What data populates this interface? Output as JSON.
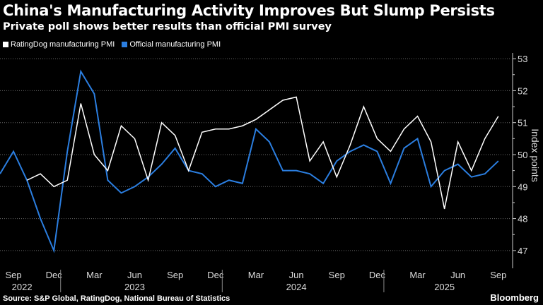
{
  "title": "China's Manufacturing Activity Improves But Slump Persists",
  "subtitle": "Private poll shows better results than official PMI survey",
  "source": "Source: S&P Global, RatingDog, National Bureau of Statistics",
  "logo": "Bloomberg",
  "chart_data": {
    "type": "line",
    "title": "China's Manufacturing Activity Improves But Slump Persists",
    "subtitle": "Private poll shows better results than official PMI survey",
    "ylabel": "Index points",
    "ylim": [
      46.5,
      53.1
    ],
    "yticks": [
      47,
      48,
      49,
      50,
      51,
      52,
      53
    ],
    "y_axis_side": "right",
    "grid": true,
    "legend": "top-left",
    "x_start": "2022-08",
    "x_end": "2025-09",
    "xticks": [
      {
        "month": "Sep",
        "date": "2022-09"
      },
      {
        "month": "Dec",
        "date": "2022-12"
      },
      {
        "month": "Mar",
        "date": "2023-03"
      },
      {
        "month": "Jun",
        "date": "2023-06"
      },
      {
        "month": "Sep",
        "date": "2023-09"
      },
      {
        "month": "Dec",
        "date": "2023-12"
      },
      {
        "month": "Mar",
        "date": "2024-03"
      },
      {
        "month": "Jun",
        "date": "2024-06"
      },
      {
        "month": "Sep",
        "date": "2024-09"
      },
      {
        "month": "Dec",
        "date": "2024-12"
      },
      {
        "month": "Mar",
        "date": "2025-03"
      },
      {
        "month": "Jun",
        "date": "2025-06"
      },
      {
        "month": "Sep",
        "date": "2025-09"
      }
    ],
    "years": [
      {
        "label": "2022",
        "center": "2022-10"
      },
      {
        "label": "2023",
        "center": "2023-06"
      },
      {
        "label": "2024",
        "center": "2024-06"
      },
      {
        "label": "2025",
        "center": "2025-05"
      }
    ],
    "series": [
      {
        "name": "RatingDog manufacturing PMI",
        "color": "#ffffff",
        "start": "2022-10",
        "values": [
          49.2,
          49.4,
          49.0,
          49.2,
          51.6,
          50.0,
          49.5,
          50.9,
          50.5,
          49.2,
          51.0,
          50.6,
          49.5,
          50.7,
          50.8,
          50.8,
          50.9,
          51.1,
          51.4,
          51.7,
          51.8,
          49.8,
          50.4,
          49.3,
          50.3,
          51.5,
          50.5,
          50.1,
          50.8,
          51.2,
          50.4,
          48.3,
          50.4,
          49.5,
          50.5,
          51.2
        ]
      },
      {
        "name": "Official manufacturing PMI",
        "color": "#2b7ee0",
        "start": "2022-08",
        "values": [
          49.4,
          50.1,
          49.2,
          48.0,
          47.0,
          50.1,
          52.6,
          51.9,
          49.2,
          48.8,
          49.0,
          49.3,
          49.7,
          50.2,
          49.5,
          49.4,
          49.0,
          49.2,
          49.1,
          50.8,
          50.4,
          49.5,
          49.5,
          49.4,
          49.1,
          49.8,
          50.1,
          50.3,
          50.1,
          49.1,
          50.2,
          50.5,
          49.0,
          49.5,
          49.7,
          49.3,
          49.4,
          49.8
        ]
      }
    ]
  }
}
